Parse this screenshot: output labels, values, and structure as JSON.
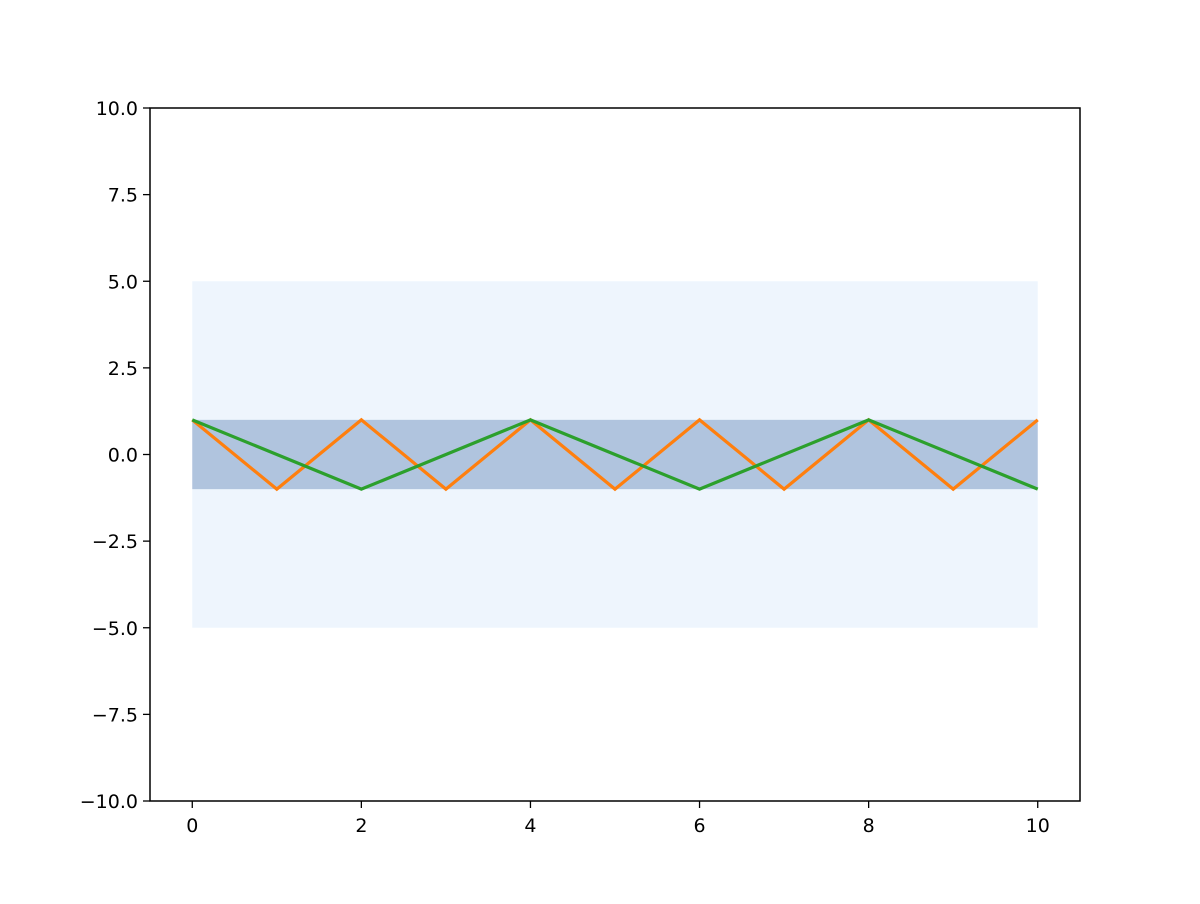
{
  "chart_data": {
    "type": "line",
    "title": "",
    "xlabel": "",
    "ylabel": "",
    "xlim": [
      -0.5,
      10.5
    ],
    "ylim": [
      -10,
      10
    ],
    "x_ticks": [
      0,
      2,
      4,
      6,
      8,
      10
    ],
    "x_tick_labels": [
      "0",
      "2",
      "4",
      "6",
      "8",
      "10"
    ],
    "y_ticks": [
      -10,
      -7.5,
      -5,
      -2.5,
      0,
      2.5,
      5,
      7.5,
      10
    ],
    "y_tick_labels": [
      "−10.0",
      "−7.5",
      "−5.0",
      "−2.5",
      "0.0",
      "2.5",
      "5.0",
      "7.5",
      "10.0"
    ],
    "grid": false,
    "legend": "none",
    "bands": [
      {
        "x_range": [
          0,
          10
        ],
        "y_range": [
          -5,
          5
        ],
        "color": "#eef5fd"
      },
      {
        "x_range": [
          0,
          10
        ],
        "y_range": [
          -1,
          1
        ],
        "color": "#b0c4de"
      }
    ],
    "series": [
      {
        "color": "#ff7f0e",
        "x": [
          0,
          1,
          2,
          3,
          4,
          5,
          6,
          7,
          8,
          9,
          10
        ],
        "values": [
          1,
          -1,
          1,
          -1,
          1,
          -1,
          1,
          -1,
          1,
          -1,
          1
        ]
      },
      {
        "color": "#2ca02c",
        "x": [
          0,
          2,
          4,
          6,
          8,
          10
        ],
        "values": [
          1,
          -1,
          1,
          -1,
          1,
          -1
        ]
      }
    ]
  }
}
